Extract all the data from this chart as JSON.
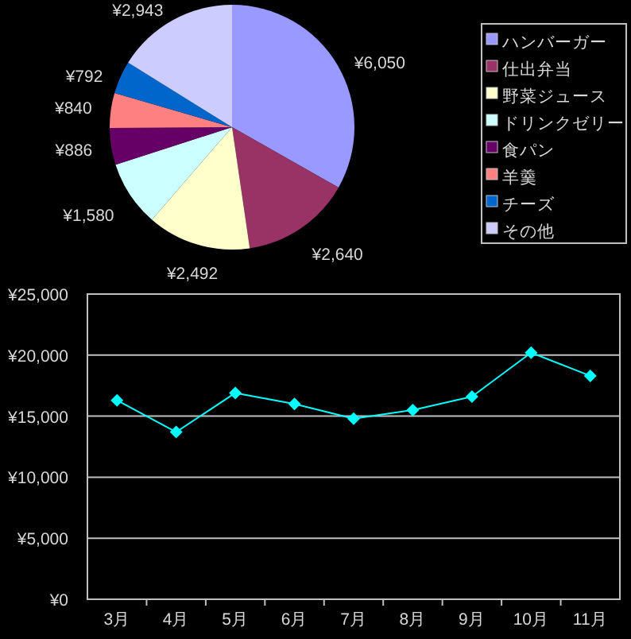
{
  "chart_data": [
    {
      "type": "pie",
      "categories": [
        "ハンバーガー",
        "仕出弁当",
        "野菜ジュース",
        "ドリンクゼリー",
        "食パン",
        "羊羹",
        "チーズ",
        "その他"
      ],
      "values": [
        6050,
        2640,
        2492,
        1580,
        886,
        840,
        792,
        2943
      ],
      "colors": [
        "#9999ff",
        "#993366",
        "#ffffcc",
        "#ccffff",
        "#660066",
        "#ff8080",
        "#0066cc",
        "#ccccff"
      ],
      "value_labels": [
        "¥6,050",
        "¥2,640",
        "¥2,492",
        "¥1,580",
        "¥886",
        "¥840",
        "¥792",
        "¥2,943"
      ],
      "legend": "right"
    },
    {
      "type": "line",
      "categories": [
        "3月",
        "4月",
        "5月",
        "6月",
        "7月",
        "8月",
        "9月",
        "10月",
        "11月"
      ],
      "series": [
        {
          "color": "#00ffff",
          "values": [
            16300,
            13700,
            16900,
            16000,
            14800,
            15500,
            16600,
            20200,
            18300
          ]
        }
      ],
      "ylim": [
        0,
        25000
      ],
      "yticks": [
        {
          "value": 0,
          "label": "¥0"
        },
        {
          "value": 5000,
          "label": "¥5,000"
        },
        {
          "value": 10000,
          "label": "¥10,000"
        },
        {
          "value": 15000,
          "label": "¥15,000"
        },
        {
          "value": 20000,
          "label": "¥20,000"
        },
        {
          "value": 25000,
          "label": "¥25,000"
        }
      ],
      "grid": "y",
      "marker": "diamond",
      "line_style": "solid"
    }
  ]
}
